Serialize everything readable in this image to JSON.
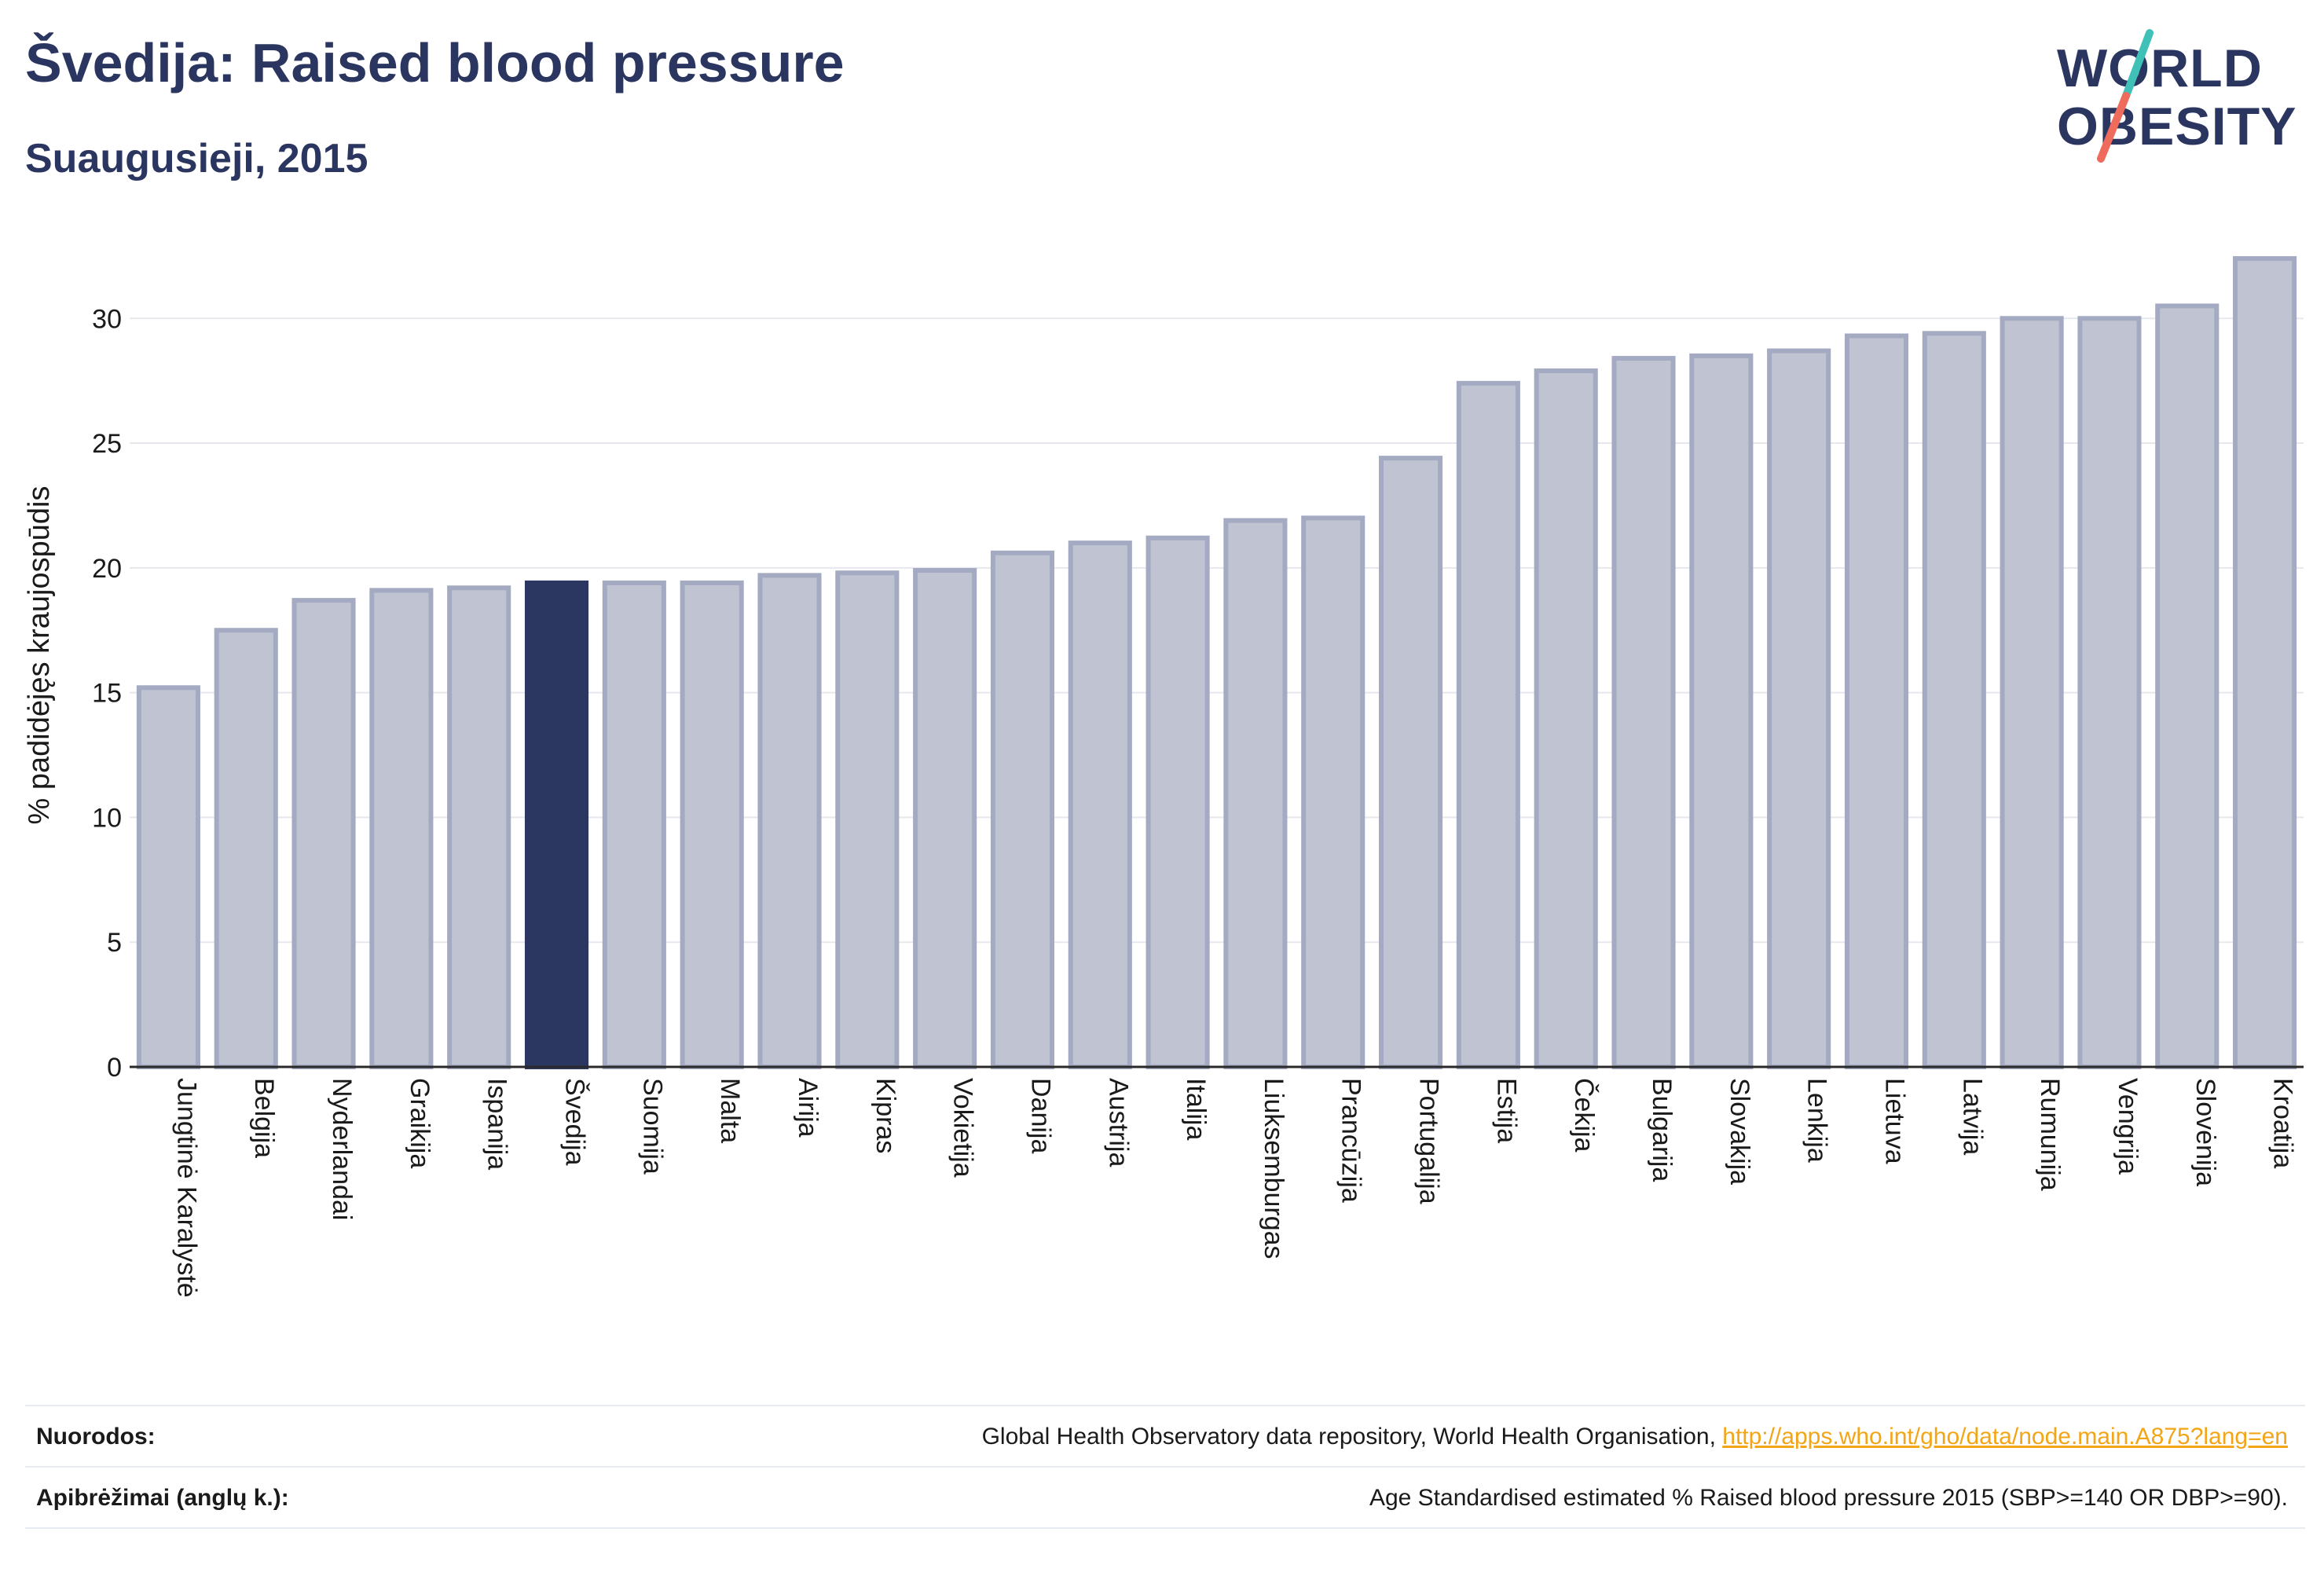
{
  "header": {
    "title": "Švedija: Raised blood pressure",
    "subtitle": "Suaugusieji, 2015"
  },
  "logo": {
    "line1": "WORLD",
    "line2": "OBESITY"
  },
  "colors": {
    "highlight": "#2b3661",
    "bar_fill": "#c0c4d2",
    "bar_stroke": "#a3aac1",
    "accent_teal": "#3fc1b7",
    "accent_red": "#ef6b5c",
    "link": "#f2a516"
  },
  "chart_data": {
    "type": "bar",
    "title": "Švedija: Raised blood pressure",
    "subtitle": "Suaugusieji, 2015",
    "xlabel": "",
    "ylabel": "% padidėjęs kraujospūdis",
    "ylim": [
      0,
      33
    ],
    "yticks": [
      0,
      5,
      10,
      15,
      20,
      25,
      30
    ],
    "grid": true,
    "highlight_category": "Švedija",
    "categories": [
      "Jungtinė Karalystė",
      "Belgija",
      "Nyderlandai",
      "Graikija",
      "Ispanija",
      "Švedija",
      "Suomija",
      "Malta",
      "Airija",
      "Kipras",
      "Vokietija",
      "Danija",
      "Austrija",
      "Italija",
      "Liuksemburgas",
      "Prancūzija",
      "Portugalija",
      "Estija",
      "Čekija",
      "Bulgarija",
      "Slovakija",
      "Lenkija",
      "Lietuva",
      "Latvija",
      "Rumunija",
      "Vengrija",
      "Slovėnija",
      "Kroatija"
    ],
    "values": [
      15.2,
      17.5,
      18.7,
      19.1,
      19.2,
      19.4,
      19.4,
      19.4,
      19.7,
      19.8,
      19.9,
      20.6,
      21.0,
      21.2,
      21.9,
      22.0,
      24.4,
      27.4,
      27.9,
      28.4,
      28.5,
      28.7,
      29.3,
      29.4,
      30.0,
      30.0,
      30.5,
      32.4
    ]
  },
  "footer": {
    "sources_label": "Nuorodos:",
    "sources_text": "Global Health Observatory data repository, World Health Organisation, ",
    "sources_link": "http://apps.who.int/gho/data/node.main.A875?lang=en",
    "definitions_label": "Apibrėžimai (anglų k.):",
    "definitions_text": "Age Standardised estimated % Raised blood pressure 2015 (SBP>=140 OR DBP>=90)."
  }
}
